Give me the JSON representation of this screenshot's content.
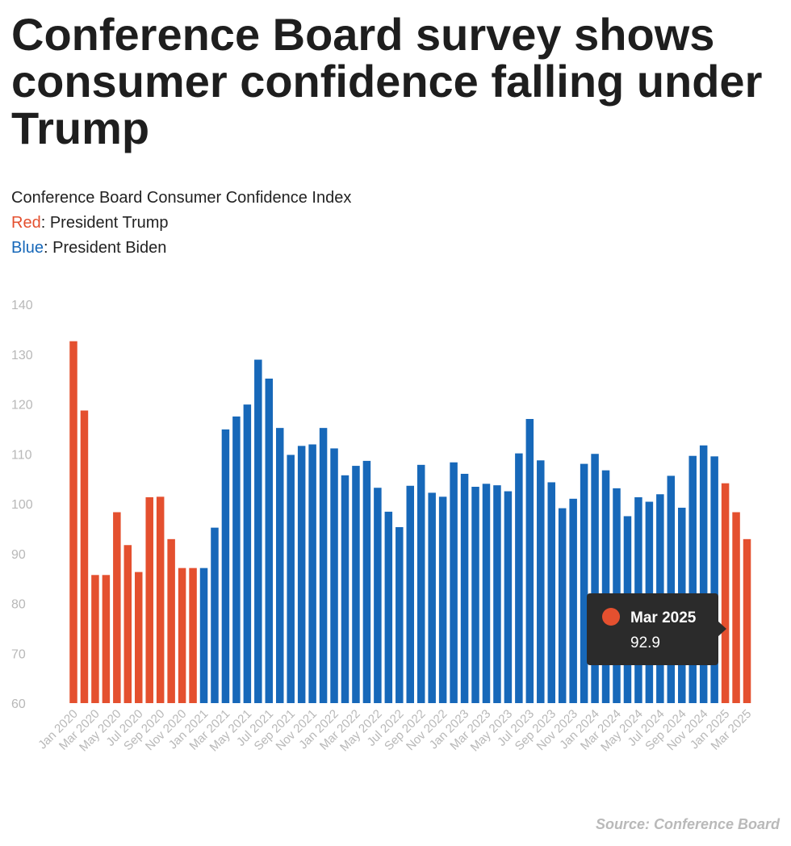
{
  "header": {
    "title": "Conference Board survey shows consumer confidence falling under Trump",
    "subtitle": "Conference Board Consumer Confidence Index",
    "legend": [
      {
        "word": "Red",
        "text": ": President Trump",
        "color": "#e4502f"
      },
      {
        "word": "Blue",
        "text": ": President Biden",
        "color": "#1768b9"
      }
    ]
  },
  "source": "Source: Conference Board",
  "tooltip": {
    "label": "Mar 2025",
    "value": "92.9",
    "color": "#e4502f"
  },
  "chart_data": {
    "type": "bar",
    "title": "Conference Board survey shows consumer confidence falling under Trump",
    "subtitle": "Conference Board Consumer Confidence Index",
    "ylim": [
      60,
      140
    ],
    "yticks": [
      60,
      70,
      80,
      90,
      100,
      110,
      120,
      130,
      140
    ],
    "grid": false,
    "series_colors": {
      "Trump": "#e4502f",
      "Biden": "#1768b9"
    },
    "categories": [
      "Jan 2020",
      "Feb 2020",
      "Mar 2020",
      "Apr 2020",
      "May 2020",
      "Jun 2020",
      "Jul 2020",
      "Aug 2020",
      "Sep 2020",
      "Oct 2020",
      "Nov 2020",
      "Dec 2020",
      "Jan 2021",
      "Feb 2021",
      "Mar 2021",
      "Apr 2021",
      "May 2021",
      "Jun 2021",
      "Jul 2021",
      "Aug 2021",
      "Sep 2021",
      "Oct 2021",
      "Nov 2021",
      "Dec 2021",
      "Jan 2022",
      "Feb 2022",
      "Mar 2022",
      "Apr 2022",
      "May 2022",
      "Jun 2022",
      "Jul 2022",
      "Aug 2022",
      "Sep 2022",
      "Oct 2022",
      "Nov 2022",
      "Dec 2022",
      "Jan 2023",
      "Feb 2023",
      "Mar 2023",
      "Apr 2023",
      "May 2023",
      "Jun 2023",
      "Jul 2023",
      "Aug 2023",
      "Sep 2023",
      "Oct 2023",
      "Nov 2023",
      "Dec 2023",
      "Jan 2024",
      "Feb 2024",
      "Mar 2024",
      "Apr 2024",
      "May 2024",
      "Jun 2024",
      "Jul 2024",
      "Aug 2024",
      "Sep 2024",
      "Oct 2024",
      "Nov 2024",
      "Dec 2024",
      "Jan 2025",
      "Feb 2025",
      "Mar 2025"
    ],
    "values": [
      132.6,
      118.7,
      85.7,
      85.7,
      98.3,
      91.7,
      86.3,
      101.3,
      101.4,
      92.9,
      87.1,
      87.1,
      87.1,
      95.2,
      114.9,
      117.5,
      119.9,
      128.9,
      125.1,
      115.2,
      109.8,
      111.6,
      111.9,
      115.2,
      111.1,
      105.7,
      107.6,
      108.6,
      103.2,
      98.4,
      95.3,
      103.6,
      107.8,
      102.2,
      101.4,
      108.3,
      106.0,
      103.4,
      104.0,
      103.7,
      102.5,
      110.1,
      117.0,
      108.7,
      104.3,
      99.1,
      101.0,
      108.0,
      110.0,
      106.7,
      103.1,
      97.5,
      101.3,
      100.4,
      101.9,
      105.6,
      99.2,
      109.6,
      111.7,
      109.5,
      104.1,
      98.3,
      92.9
    ],
    "president": [
      "Trump",
      "Trump",
      "Trump",
      "Trump",
      "Trump",
      "Trump",
      "Trump",
      "Trump",
      "Trump",
      "Trump",
      "Trump",
      "Trump",
      "Biden",
      "Biden",
      "Biden",
      "Biden",
      "Biden",
      "Biden",
      "Biden",
      "Biden",
      "Biden",
      "Biden",
      "Biden",
      "Biden",
      "Biden",
      "Biden",
      "Biden",
      "Biden",
      "Biden",
      "Biden",
      "Biden",
      "Biden",
      "Biden",
      "Biden",
      "Biden",
      "Biden",
      "Biden",
      "Biden",
      "Biden",
      "Biden",
      "Biden",
      "Biden",
      "Biden",
      "Biden",
      "Biden",
      "Biden",
      "Biden",
      "Biden",
      "Biden",
      "Biden",
      "Biden",
      "Biden",
      "Biden",
      "Biden",
      "Biden",
      "Biden",
      "Biden",
      "Biden",
      "Biden",
      "Biden",
      "Trump",
      "Trump",
      "Trump"
    ]
  }
}
